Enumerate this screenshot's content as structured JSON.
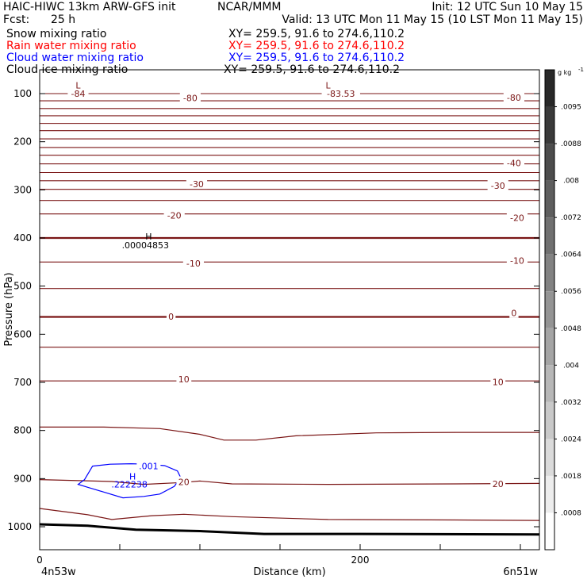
{
  "header": {
    "model": "HAIC-HIWC 13km ARW-GFS init",
    "org": "NCAR/MMM",
    "init": "Init: 12 UTC Sun 10 May 15",
    "fcst_label": "Fcst:",
    "fcst_value": "25 h",
    "valid": "Valid: 13 UTC Mon 11 May 15 (10 LST Mon 11 May 15)",
    "fields": [
      {
        "name": "Snow mixing ratio",
        "xy": "XY= 259.5, 91.6 to 274.6,110.2",
        "color": "#000000"
      },
      {
        "name": "Rain water mixing ratio",
        "xy": "XY= 259.5, 91.6 to 274.6,110.2",
        "color": "#ff0000"
      },
      {
        "name": "Cloud water mixing ratio",
        "xy": "XY= 259.5, 91.6 to 274.6,110.2",
        "color": "#0000ff"
      },
      {
        "name": "Cloud ice mixing ratio",
        "xy": "XY= 259.5, 91.6 to 274.6,110.2",
        "color": "#000000"
      }
    ]
  },
  "chart_data": {
    "type": "contour",
    "xlabel": "Distance (km)",
    "ylabel": "Pressure (hPa)",
    "xlim": [
      0,
      300
    ],
    "ylim": [
      1050,
      50
    ],
    "x_ticks": [
      0,
      200
    ],
    "x_minor_ticks": [
      50,
      100,
      150,
      250,
      300
    ],
    "y_ticks": [
      100,
      200,
      300,
      400,
      500,
      600,
      700,
      800,
      900,
      1000
    ],
    "endpoints": {
      "left": "4n53w",
      "right": "6n51w"
    },
    "colorbar": {
      "unit": "g kg",
      "unit_exp": "-1",
      "labels": [
        ".0095",
        ".0088",
        ".008",
        ".0072",
        ".0064",
        ".0056",
        ".0048",
        ".004",
        ".0032",
        ".0024",
        ".0018",
        ".0008"
      ]
    },
    "temperature_contours": {
      "color": "#7a1515",
      "levels": [
        {
          "p": 100,
          "bold": false
        },
        {
          "p": 115,
          "bold": false
        },
        {
          "p": 131,
          "bold": false
        },
        {
          "p": 146,
          "bold": false
        },
        {
          "p": 162,
          "bold": false
        },
        {
          "p": 177,
          "bold": false
        },
        {
          "p": 194,
          "bold": false
        },
        {
          "p": 212,
          "bold": false
        },
        {
          "p": 228,
          "bold": false
        },
        {
          "p": 246,
          "bold": false
        },
        {
          "p": 264,
          "bold": false
        },
        {
          "p": 281,
          "bold": false
        },
        {
          "p": 299,
          "bold": false
        },
        {
          "p": 322,
          "bold": false
        },
        {
          "p": 350,
          "bold": false
        },
        {
          "p": 400,
          "bold": true
        },
        {
          "p": 450,
          "bold": false
        },
        {
          "p": 505,
          "bold": false
        },
        {
          "p": 564,
          "bold": true
        },
        {
          "p": 627,
          "bold": false
        },
        {
          "p": 697,
          "bold": false
        }
      ],
      "wavy": [
        {
          "points": [
            [
              0,
              793
            ],
            [
              40,
              793
            ],
            [
              75,
              796
            ],
            [
              100,
              808
            ],
            [
              115,
              820
            ],
            [
              135,
              820
            ],
            [
              160,
              811
            ],
            [
              210,
              805
            ],
            [
              260,
              804
            ],
            [
              312,
              804
            ]
          ]
        },
        {
          "points": [
            [
              0,
              902
            ],
            [
              45,
              906
            ],
            [
              65,
              912
            ],
            [
              90,
              908
            ],
            [
              100,
              905
            ],
            [
              120,
              911
            ],
            [
              180,
              912
            ],
            [
              260,
              911
            ],
            [
              312,
              910
            ]
          ]
        },
        {
          "points": [
            [
              0,
              962
            ],
            [
              30,
              975
            ],
            [
              45,
              985
            ],
            [
              70,
              977
            ],
            [
              90,
              974
            ],
            [
              120,
              979
            ],
            [
              180,
              985
            ],
            [
              260,
              986
            ],
            [
              312,
              987
            ]
          ]
        }
      ],
      "surface": {
        "points": [
          [
            0,
            995
          ],
          [
            30,
            998
          ],
          [
            60,
            1006
          ],
          [
            100,
            1009
          ],
          [
            140,
            1015
          ],
          [
            200,
            1015
          ],
          [
            312,
            1016
          ]
        ]
      },
      "labels": [
        {
          "text": "-84",
          "x": 24,
          "p": 100
        },
        {
          "text": "-80",
          "x": 94,
          "p": 109
        },
        {
          "text": "-83.53",
          "x": 188,
          "p": 100
        },
        {
          "text": "-80",
          "x": 296,
          "p": 108
        },
        {
          "text": "-40",
          "x": 296,
          "p": 244
        },
        {
          "text": "-30",
          "x": 98,
          "p": 288
        },
        {
          "text": "-30",
          "x": 286,
          "p": 291
        },
        {
          "text": "-20",
          "x": 84,
          "p": 353
        },
        {
          "text": "-20",
          "x": 298,
          "p": 358
        },
        {
          "text": "-10",
          "x": 96,
          "p": 453
        },
        {
          "text": "-10",
          "x": 298,
          "p": 447
        },
        {
          "text": "0",
          "x": 82,
          "p": 563
        },
        {
          "text": "0",
          "x": 296,
          "p": 556
        },
        {
          "text": "10",
          "x": 90,
          "p": 693
        },
        {
          "text": "10",
          "x": 286,
          "p": 699
        },
        {
          "text": "20",
          "x": 90,
          "p": 907
        },
        {
          "text": "20",
          "x": 286,
          "p": 911
        }
      ],
      "extrema": [
        {
          "text": "L",
          "x": 24,
          "p": 83
        },
        {
          "text": "L",
          "x": 180,
          "p": 83
        }
      ]
    },
    "cloud_ice": {
      "color": "#000000",
      "max_marker": {
        "text": "H",
        "x": 68,
        "p": 397
      },
      "max_value": {
        "text": ".00004853",
        "x": 66,
        "p": 415
      }
    },
    "cloud_water": {
      "color": "#0000ff",
      "level_label": {
        "text": ".001",
        "x": 68,
        "p": 874
      },
      "contour": [
        [
          33,
          874
        ],
        [
          44,
          870
        ],
        [
          57,
          869
        ],
        [
          67,
          870
        ],
        [
          78,
          873
        ],
        [
          86,
          884
        ],
        [
          88,
          898
        ],
        [
          84,
          916
        ],
        [
          75,
          932
        ],
        [
          65,
          937
        ],
        [
          52,
          940
        ],
        [
          40,
          928
        ],
        [
          30,
          918
        ],
        [
          24,
          912
        ],
        [
          28,
          902
        ]
      ],
      "max_marker": {
        "text": "H",
        "x": 58,
        "p": 895
      },
      "max_value": {
        "text": ".222238",
        "x": 56,
        "p": 912
      }
    }
  }
}
